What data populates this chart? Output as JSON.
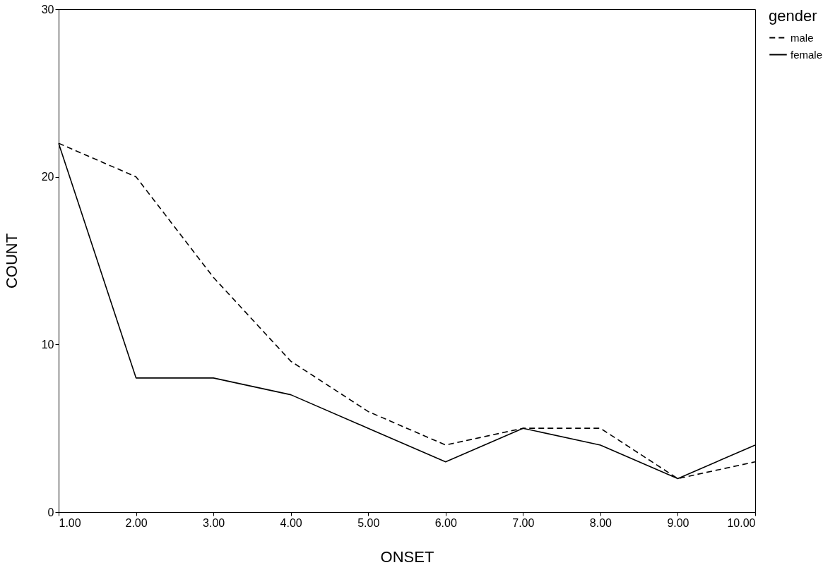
{
  "chart_data": {
    "type": "line",
    "xlabel": "ONSET",
    "ylabel": "COUNT",
    "legend_title": "gender",
    "legend": "right",
    "grid": false,
    "x": [
      1,
      2,
      3,
      4,
      5,
      6,
      7,
      8,
      9,
      10
    ],
    "xlim": [
      1,
      10
    ],
    "xticks": [
      {
        "value": 1,
        "label": "1.00"
      },
      {
        "value": 2,
        "label": "2.00"
      },
      {
        "value": 3,
        "label": "3.00"
      },
      {
        "value": 4,
        "label": "4.00"
      },
      {
        "value": 5,
        "label": "5.00"
      },
      {
        "value": 6,
        "label": "6.00"
      },
      {
        "value": 7,
        "label": "7.00"
      },
      {
        "value": 8,
        "label": "8.00"
      },
      {
        "value": 9,
        "label": "9.00"
      },
      {
        "value": 10,
        "label": "10.00"
      }
    ],
    "ylim": [
      0,
      30
    ],
    "yticks": [
      0,
      10,
      20,
      30
    ],
    "series": [
      {
        "name": "male",
        "color": "#000000",
        "line_style": "dashed",
        "values": [
          22,
          20,
          14,
          9,
          6,
          4,
          5,
          5,
          2,
          3
        ]
      },
      {
        "name": "female",
        "color": "#000000",
        "line_style": "solid",
        "values": [
          22,
          8,
          8,
          7,
          5,
          3,
          5,
          4,
          2,
          4
        ]
      }
    ]
  }
}
